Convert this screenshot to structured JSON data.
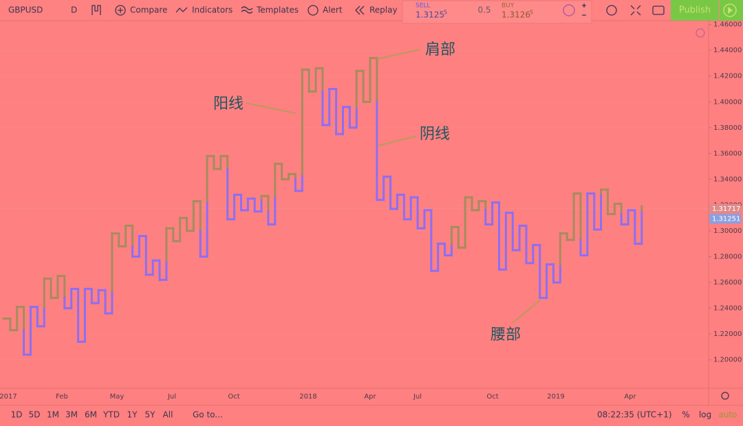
{
  "toolbar": {
    "symbol": "GBPUSD",
    "interval": "D",
    "compare": "Compare",
    "indicators": "Indicators",
    "templates": "Templates",
    "alert": "Alert",
    "replay": "Replay",
    "sell_label": "SELL",
    "sell_price": "1.3125",
    "sell_pip": "5",
    "spread": "0.5",
    "buy_label": "BUY",
    "buy_price": "1.3126",
    "buy_pip": "5",
    "publish": "Publish"
  },
  "chart_data": {
    "type": "kagi",
    "values": [
      1.232,
      1.223,
      1.241,
      1.204,
      1.241,
      1.226,
      1.263,
      1.248,
      1.265,
      1.24,
      1.255,
      1.214,
      1.255,
      1.244,
      1.254,
      1.236,
      1.298,
      1.288,
      1.304,
      1.28,
      1.296,
      1.266,
      1.277,
      1.262,
      1.302,
      1.292,
      1.31,
      1.3,
      1.323,
      1.28,
      1.358,
      1.348,
      1.358,
      1.309,
      1.328,
      1.316,
      1.325,
      1.315,
      1.327,
      1.305,
      1.352,
      1.34,
      1.344,
      1.331,
      1.425,
      1.408,
      1.426,
      1.382,
      1.41,
      1.375,
      1.396,
      1.38,
      1.424,
      1.4,
      1.434,
      1.324,
      1.342,
      1.317,
      1.328,
      1.309,
      1.326,
      1.302,
      1.316,
      1.269,
      1.29,
      1.281,
      1.303,
      1.287,
      1.326,
      1.316,
      1.323,
      1.305,
      1.322,
      1.27,
      1.314,
      1.285,
      1.304,
      1.275,
      1.289,
      1.248,
      1.274,
      1.26,
      1.298,
      1.293,
      1.329,
      1.281,
      1.329,
      1.301,
      1.332,
      1.313,
      1.321,
      1.305,
      1.316,
      1.29,
      1.319
    ],
    "yang_color": "#a58c5e",
    "yin_color": "#8c6ef5",
    "ylim": [
      1.178,
      1.463
    ],
    "yticks": [
      {
        "value": 1.46,
        "label": "1.46000"
      },
      {
        "value": 1.44,
        "label": "1.44000"
      },
      {
        "value": 1.42,
        "label": "1.42000"
      },
      {
        "value": 1.4,
        "label": "1.40000"
      },
      {
        "value": 1.38,
        "label": "1.38000"
      },
      {
        "value": 1.36,
        "label": "1.36000"
      },
      {
        "value": 1.34,
        "label": "1.34000"
      },
      {
        "value": 1.32,
        "label": "1.32000"
      },
      {
        "value": 1.3,
        "label": "1.30000"
      },
      {
        "value": 1.28,
        "label": "1.28000"
      },
      {
        "value": 1.26,
        "label": "1.26000"
      },
      {
        "value": 1.24,
        "label": "1.24000"
      },
      {
        "value": 1.22,
        "label": "1.22000"
      },
      {
        "value": 1.2,
        "label": "1.20000"
      }
    ],
    "x_labels": [
      "2017",
      "Feb",
      "May",
      "Jul",
      "Oct",
      "2018",
      "Apr",
      "Jul",
      "Oct",
      "2019",
      "Apr"
    ],
    "price_tags": [
      {
        "value": 1.31717,
        "label": "1.31717"
      },
      {
        "value": 1.31251,
        "label": "1.31251"
      }
    ],
    "annotations": [
      "肩部",
      "阳线",
      "阴线",
      "腰部"
    ]
  },
  "bottom_bar": {
    "ranges": [
      "1D",
      "5D",
      "1M",
      "3M",
      "6M",
      "YTD",
      "1Y",
      "5Y",
      "All"
    ],
    "goto": "Go to...",
    "clock": "08:22:35 (UTC+1)",
    "percent": "%",
    "log": "log",
    "auto": "auto"
  }
}
